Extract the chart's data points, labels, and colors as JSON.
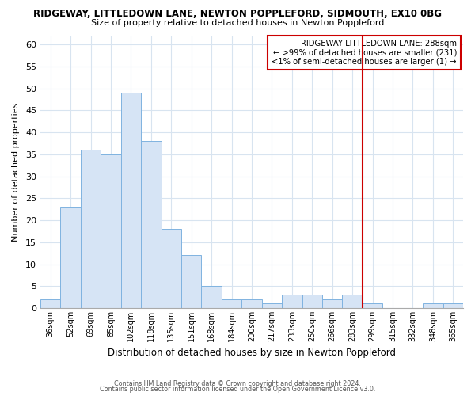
{
  "title_line1": "RIDGEWAY, LITTLEDOWN LANE, NEWTON POPPLEFORD, SIDMOUTH, EX10 0BG",
  "title_line2": "Size of property relative to detached houses in Newton Poppleford",
  "xlabel": "Distribution of detached houses by size in Newton Poppleford",
  "ylabel": "Number of detached properties",
  "footnote1": "Contains HM Land Registry data © Crown copyright and database right 2024.",
  "footnote2": "Contains public sector information licensed under the Open Government Licence v3.0.",
  "bar_labels": [
    "36sqm",
    "52sqm",
    "69sqm",
    "85sqm",
    "102sqm",
    "118sqm",
    "135sqm",
    "151sqm",
    "168sqm",
    "184sqm",
    "200sqm",
    "217sqm",
    "233sqm",
    "250sqm",
    "266sqm",
    "283sqm",
    "299sqm",
    "315sqm",
    "332sqm",
    "348sqm",
    "365sqm"
  ],
  "bar_heights": [
    2,
    23,
    36,
    35,
    49,
    38,
    18,
    12,
    5,
    2,
    2,
    1,
    3,
    3,
    2,
    3,
    1,
    0,
    0,
    1,
    1
  ],
  "bar_color": "#d6e4f5",
  "bar_edge_color": "#7fb3e0",
  "grid_color": "#d8e4f0",
  "vline_x_index": 15.5,
  "vline_color": "#cc0000",
  "annot_line1": "RIDGEWAY LITTLEDOWN LANE: 288sqm",
  "annot_line2": "← >99% of detached houses are smaller (231)",
  "annot_line3": "<1% of semi-detached houses are larger (1) →",
  "annotation_box_color": "#cc0000",
  "ylim": [
    0,
    62
  ],
  "yticks": [
    0,
    5,
    10,
    15,
    20,
    25,
    30,
    35,
    40,
    45,
    50,
    55,
    60
  ],
  "background_color": "#ffffff"
}
